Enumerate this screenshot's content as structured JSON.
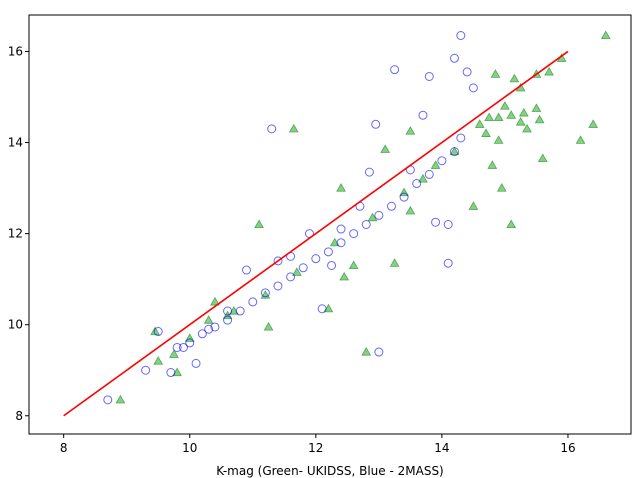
{
  "chart_data": {
    "type": "scatter",
    "title": "",
    "xlabel": "K-mag (Green- UKIDSS, Blue - 2MASS)",
    "ylabel": "",
    "xlim": [
      7.45,
      17.0
    ],
    "ylim": [
      7.6,
      16.8
    ],
    "xticks": [
      8,
      10,
      12,
      14,
      16
    ],
    "yticks": [
      8,
      10,
      12,
      14,
      16
    ],
    "grid": false,
    "legend": "none",
    "series": [
      {
        "marker": "triangle",
        "color": "#2ca02c",
        "points": [
          [
            8.9,
            8.35
          ],
          [
            9.45,
            9.85
          ],
          [
            9.5,
            9.2
          ],
          [
            9.75,
            9.35
          ],
          [
            9.8,
            8.95
          ],
          [
            10.0,
            9.7
          ],
          [
            10.3,
            10.1
          ],
          [
            10.4,
            10.5
          ],
          [
            10.7,
            10.3
          ],
          [
            11.1,
            12.2
          ],
          [
            11.25,
            9.95
          ],
          [
            11.65,
            14.3
          ],
          [
            12.2,
            10.35
          ],
          [
            12.4,
            13.0
          ],
          [
            12.45,
            11.05
          ],
          [
            12.6,
            11.3
          ],
          [
            12.8,
            9.4
          ],
          [
            13.25,
            11.35
          ],
          [
            13.1,
            13.85
          ],
          [
            13.5,
            14.25
          ],
          [
            13.5,
            12.5
          ],
          [
            14.5,
            12.6
          ],
          [
            14.8,
            13.5
          ],
          [
            14.95,
            13.0
          ],
          [
            15.1,
            12.2
          ],
          [
            15.6,
            13.65
          ],
          [
            14.85,
            15.5
          ],
          [
            15.15,
            15.4
          ],
          [
            15.25,
            15.2
          ],
          [
            15.5,
            15.5
          ],
          [
            15.7,
            15.55
          ],
          [
            15.9,
            15.85
          ],
          [
            16.6,
            16.35
          ],
          [
            16.2,
            14.05
          ],
          [
            16.4,
            14.4
          ],
          [
            14.9,
            14.05
          ],
          [
            15.1,
            14.6
          ],
          [
            15.3,
            14.65
          ],
          [
            15.5,
            14.75
          ],
          [
            15.35,
            14.3
          ],
          [
            15.0,
            14.8
          ],
          [
            14.9,
            14.55
          ],
          [
            14.6,
            14.4
          ],
          [
            14.7,
            14.2
          ],
          [
            13.9,
            13.5
          ],
          [
            13.4,
            12.9
          ],
          [
            12.9,
            12.35
          ],
          [
            12.3,
            11.8
          ],
          [
            11.7,
            11.15
          ],
          [
            11.2,
            10.65
          ],
          [
            10.6,
            10.2
          ],
          [
            15.55,
            14.5
          ],
          [
            15.25,
            14.45
          ],
          [
            14.75,
            14.55
          ],
          [
            14.2,
            13.8
          ],
          [
            13.7,
            13.2
          ]
        ]
      },
      {
        "marker": "circle",
        "color": "#0000ff",
        "points": [
          [
            8.7,
            8.35
          ],
          [
            9.3,
            9.0
          ],
          [
            9.5,
            9.85
          ],
          [
            9.7,
            8.95
          ],
          [
            10.1,
            9.15
          ],
          [
            9.9,
            9.5
          ],
          [
            10.3,
            9.9
          ],
          [
            10.6,
            10.3
          ],
          [
            10.9,
            11.2
          ],
          [
            11.4,
            11.4
          ],
          [
            11.3,
            14.3
          ],
          [
            11.6,
            11.5
          ],
          [
            11.9,
            12.0
          ],
          [
            12.1,
            10.35
          ],
          [
            12.25,
            11.3
          ],
          [
            12.4,
            12.1
          ],
          [
            12.7,
            12.6
          ],
          [
            12.85,
            13.35
          ],
          [
            12.95,
            14.4
          ],
          [
            13.0,
            9.4
          ],
          [
            13.25,
            15.6
          ],
          [
            13.5,
            13.4
          ],
          [
            13.7,
            14.6
          ],
          [
            13.8,
            15.45
          ],
          [
            13.9,
            12.25
          ],
          [
            14.1,
            12.2
          ],
          [
            14.1,
            11.35
          ],
          [
            14.2,
            15.85
          ],
          [
            14.3,
            16.35
          ],
          [
            14.4,
            15.55
          ],
          [
            14.5,
            15.2
          ],
          [
            14.3,
            14.1
          ],
          [
            14.2,
            13.8
          ],
          [
            14.0,
            13.6
          ],
          [
            13.8,
            13.3
          ],
          [
            13.6,
            13.1
          ],
          [
            13.4,
            12.8
          ],
          [
            13.2,
            12.6
          ],
          [
            13.0,
            12.4
          ],
          [
            12.8,
            12.2
          ],
          [
            12.6,
            12.0
          ],
          [
            12.4,
            11.8
          ],
          [
            12.2,
            11.6
          ],
          [
            12.0,
            11.45
          ],
          [
            11.8,
            11.25
          ],
          [
            11.6,
            11.05
          ],
          [
            11.4,
            10.85
          ],
          [
            11.2,
            10.7
          ],
          [
            11.0,
            10.5
          ],
          [
            10.8,
            10.3
          ],
          [
            10.6,
            10.1
          ],
          [
            10.4,
            9.95
          ],
          [
            10.2,
            9.8
          ],
          [
            10.0,
            9.6
          ],
          [
            9.8,
            9.5
          ]
        ]
      }
    ],
    "reference_line": {
      "color": "#ff0000",
      "points": [
        [
          8,
          8
        ],
        [
          16,
          16
        ]
      ]
    }
  }
}
